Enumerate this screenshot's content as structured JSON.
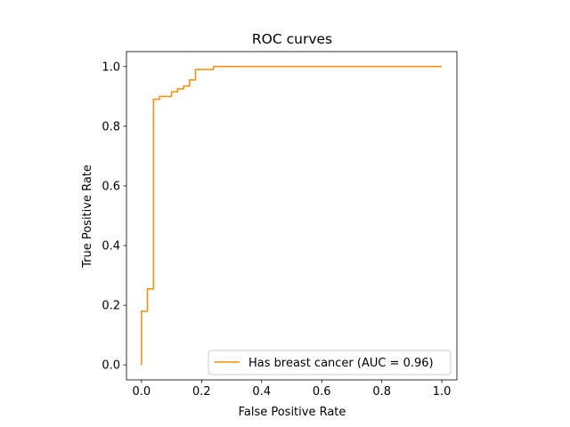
{
  "chart_data": {
    "type": "line",
    "title": "ROC curves",
    "xlabel": "False Positive Rate",
    "ylabel": "True Positive Rate",
    "xlim": [
      -0.05,
      1.05
    ],
    "ylim": [
      -0.05,
      1.05
    ],
    "x_ticks": [
      0.0,
      0.2,
      0.4,
      0.6,
      0.8,
      1.0
    ],
    "x_tick_labels": [
      "0.0",
      "0.2",
      "0.4",
      "0.6",
      "0.8",
      "1.0"
    ],
    "y_ticks": [
      0.0,
      0.2,
      0.4,
      0.6,
      0.8,
      1.0
    ],
    "y_tick_labels": [
      "0.0",
      "0.2",
      "0.4",
      "0.6",
      "0.8",
      "1.0"
    ],
    "grid": false,
    "legend_position": "lower-right",
    "series": [
      {
        "name": "Has breast cancer (AUC = 0.96)",
        "color": "#ff8c00",
        "drawstyle": "steps",
        "x": [
          0.0,
          0.0,
          0.0,
          0.02,
          0.02,
          0.04,
          0.04,
          0.06,
          0.06,
          0.1,
          0.1,
          0.12,
          0.12,
          0.14,
          0.14,
          0.16,
          0.16,
          0.18,
          0.18,
          0.24,
          0.24,
          1.0
        ],
        "y": [
          0.0,
          0.18,
          0.18,
          0.18,
          0.255,
          0.255,
          0.89,
          0.89,
          0.9,
          0.9,
          0.915,
          0.915,
          0.925,
          0.925,
          0.935,
          0.935,
          0.955,
          0.955,
          0.99,
          0.99,
          1.0,
          1.0
        ]
      }
    ]
  }
}
